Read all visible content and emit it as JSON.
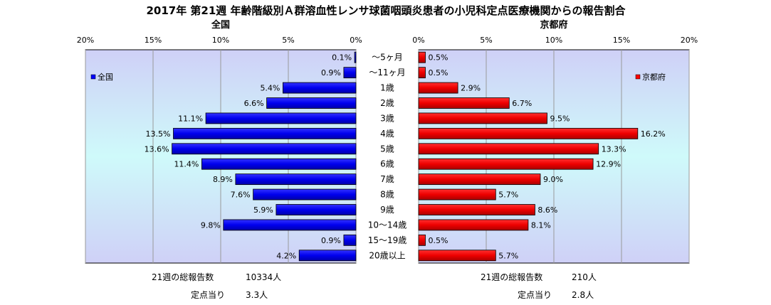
{
  "title": "2017年 第21週 年齢階級別Ａ群溶血性レンサ球菌咽頭炎患者の小児科定点医療機関からの報告割合",
  "chart_data": {
    "type": "bar",
    "orientation": "horizontal",
    "categories": [
      "～5ヶ月",
      "～11ヶ月",
      "1歳",
      "2歳",
      "3歳",
      "4歳",
      "5歳",
      "6歳",
      "7歳",
      "8歳",
      "9歳",
      "10～14歳",
      "15～19歳",
      "20歳以上"
    ],
    "series": [
      {
        "name": "全国",
        "values": [
          0.1,
          0.9,
          5.4,
          6.6,
          11.1,
          13.5,
          13.6,
          11.4,
          8.9,
          7.6,
          5.9,
          9.8,
          0.9,
          4.2
        ],
        "labels": [
          "0.1%",
          "0.9%",
          "5.4%",
          "6.6%",
          "11.1%",
          "13.5%",
          "13.6%",
          "11.4%",
          "8.9%",
          "7.6%",
          "5.9%",
          "9.8%",
          "0.9%",
          "4.2%"
        ]
      },
      {
        "name": "京都府",
        "values": [
          0.5,
          0.5,
          2.9,
          6.7,
          9.5,
          16.2,
          13.3,
          12.9,
          9.0,
          5.7,
          8.6,
          8.1,
          0.5,
          5.7
        ],
        "labels": [
          "0.5%",
          "0.5%",
          "2.9%",
          "6.7%",
          "9.5%",
          "16.2%",
          "13.3%",
          "12.9%",
          "9.0%",
          "5.7%",
          "8.6%",
          "8.1%",
          "0.5%",
          "5.7%"
        ]
      }
    ],
    "panels": [
      {
        "subtitle": "全国",
        "legend": "全国",
        "xlim": [
          20,
          0
        ],
        "ticks": [
          "20%",
          "15%",
          "10%",
          "5%",
          "0%"
        ],
        "legend_position": "top-left",
        "color": "#0000ff"
      },
      {
        "subtitle": "京都府",
        "legend": "京都府",
        "xlim": [
          0,
          20
        ],
        "ticks": [
          "0%",
          "5%",
          "10%",
          "15%",
          "20%"
        ],
        "legend_position": "top-right",
        "color": "#ff0000"
      }
    ],
    "grid": true
  },
  "summary": {
    "national": {
      "total_label": "21週の総報告数",
      "total_value": "10334人",
      "per_label": "定点当り",
      "per_value": "3.3人"
    },
    "kyoto": {
      "total_label": "21週の総報告数",
      "total_value": "210人",
      "per_label": "定点当り",
      "per_value": "2.8人"
    }
  }
}
